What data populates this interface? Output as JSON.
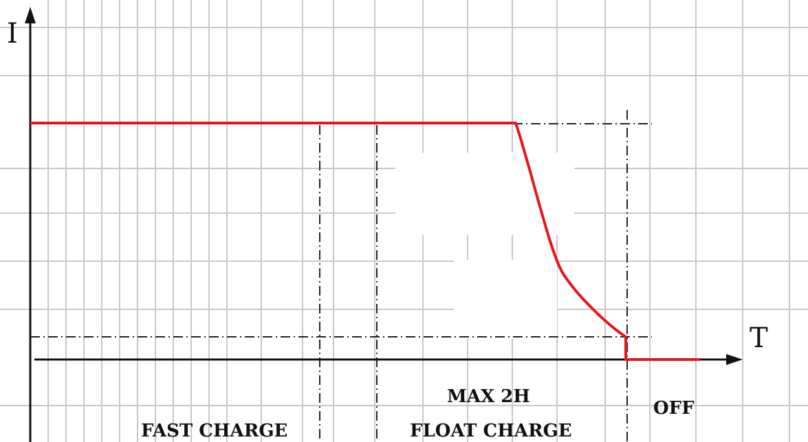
{
  "diagram": {
    "axes": {
      "y_label": "I",
      "x_label": "T"
    },
    "phases": {
      "fast_charge": "FAST CHARGE",
      "float_charge": "FLOAT CHARGE",
      "max_duration": "MAX 2H",
      "off": "OFF"
    },
    "colors": {
      "grid": "#c8c8c8",
      "axis": "#111111",
      "current_curve": "#e8141b",
      "guide_lines": "#222222"
    }
  }
}
